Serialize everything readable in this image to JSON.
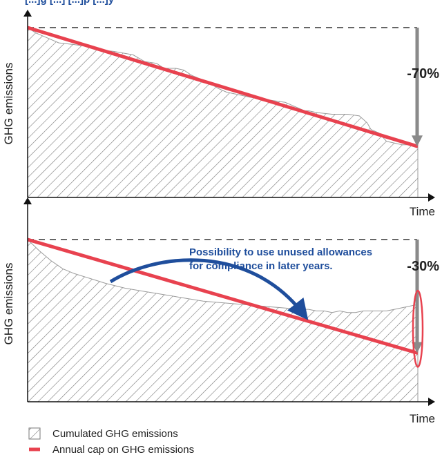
{
  "figure": {
    "top_caption": "[...]g [...] [...]p [...]y"
  },
  "colors": {
    "cap_line": "#e8424f",
    "arrow_blue": "#1f4e9c",
    "text_blue": "#1f4e9c",
    "hatch": "#777777",
    "axis": "#111111",
    "dashed": "#333333",
    "gray_arrow": "#8a8a8a"
  },
  "legend": {
    "cumulated_label": "Cumulated GHG emissions",
    "cap_label": "Annual cap on GHG emissions"
  },
  "chart_data": [
    {
      "type": "area",
      "ylabel": "GHG emissions",
      "xlabel": "Time",
      "grid": false,
      "annotation": "-70%",
      "ylim": [
        0,
        100
      ],
      "xlim": [
        0,
        100
      ],
      "series": [
        {
          "name": "Annual cap on GHG emissions",
          "type": "line",
          "x": [
            0,
            100
          ],
          "y": [
            100,
            30
          ]
        },
        {
          "name": "Cumulated GHG emissions",
          "type": "area",
          "x": [
            0,
            2,
            5,
            8,
            12,
            15,
            18,
            22,
            27,
            30,
            33,
            35,
            38,
            40,
            42,
            44,
            46,
            49,
            51,
            53,
            55,
            57,
            60,
            63,
            66,
            69,
            71,
            72,
            74,
            78,
            82,
            85,
            87,
            88,
            90,
            92,
            94,
            96,
            98,
            100
          ],
          "y": [
            100,
            97,
            94,
            91,
            90,
            89,
            87,
            86,
            84,
            80,
            79,
            76,
            76,
            75,
            72,
            70,
            68,
            64,
            62,
            61,
            60,
            59,
            58,
            57,
            56,
            53,
            51,
            51,
            50,
            49,
            49,
            48,
            44,
            40,
            38,
            33,
            32,
            31,
            31,
            30
          ]
        }
      ]
    },
    {
      "type": "area",
      "ylabel": "GHG emissions",
      "xlabel": "Time",
      "grid": false,
      "annotation": "-30%",
      "note": [
        "Possibility to use unused allowances",
        "for compliance in later years."
      ],
      "ylim": [
        0,
        100
      ],
      "xlim": [
        0,
        100
      ],
      "series": [
        {
          "name": "Annual cap on GHG emissions",
          "type": "line",
          "x": [
            0,
            100
          ],
          "y": [
            100,
            30
          ]
        },
        {
          "name": "Cumulated GHG emissions",
          "type": "area",
          "x": [
            0,
            3,
            6,
            9,
            12,
            16,
            20,
            25,
            30,
            35,
            40,
            45,
            50,
            55,
            60,
            65,
            70,
            72,
            74,
            76,
            78,
            80,
            82,
            84,
            86,
            88,
            90,
            92,
            94,
            96,
            98,
            100
          ],
          "y": [
            100,
            93,
            87,
            82,
            79,
            76,
            73,
            70,
            68,
            66,
            64,
            62,
            61,
            60,
            59,
            58,
            57,
            57,
            56,
            56,
            55,
            56,
            55,
            55,
            56,
            56,
            56,
            56,
            57,
            58,
            59,
            60
          ]
        }
      ]
    }
  ]
}
